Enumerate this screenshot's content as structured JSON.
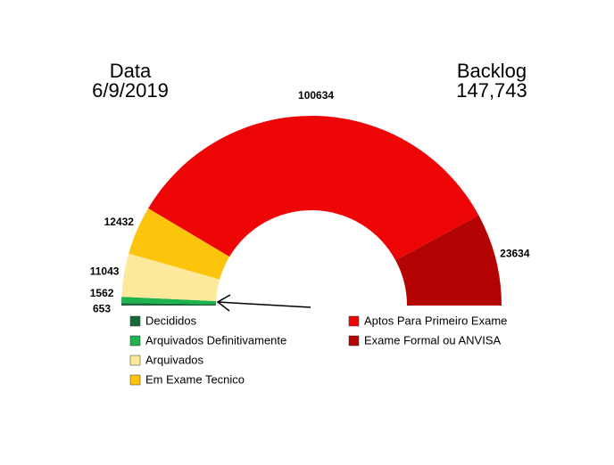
{
  "chart_data": {
    "type": "half-donut",
    "categories": [
      "Decididos",
      "Arquivados Definitivamente",
      "Arquivados",
      "Em Exame Tecnico",
      "Aptos Para Primeiro Exame",
      "Exame Formal ou ANVISA"
    ],
    "values": [
      653,
      1562,
      11043,
      12432,
      100634,
      23634
    ],
    "colors": [
      "#17693a",
      "#1fb34f",
      "#fde99b",
      "#fcc50c",
      "#ee0606",
      "#b30303"
    ],
    "annotations": {
      "date_label": "Data",
      "date": "6/9/2019",
      "backlog_label": "Backlog",
      "backlog": "147,743"
    }
  }
}
